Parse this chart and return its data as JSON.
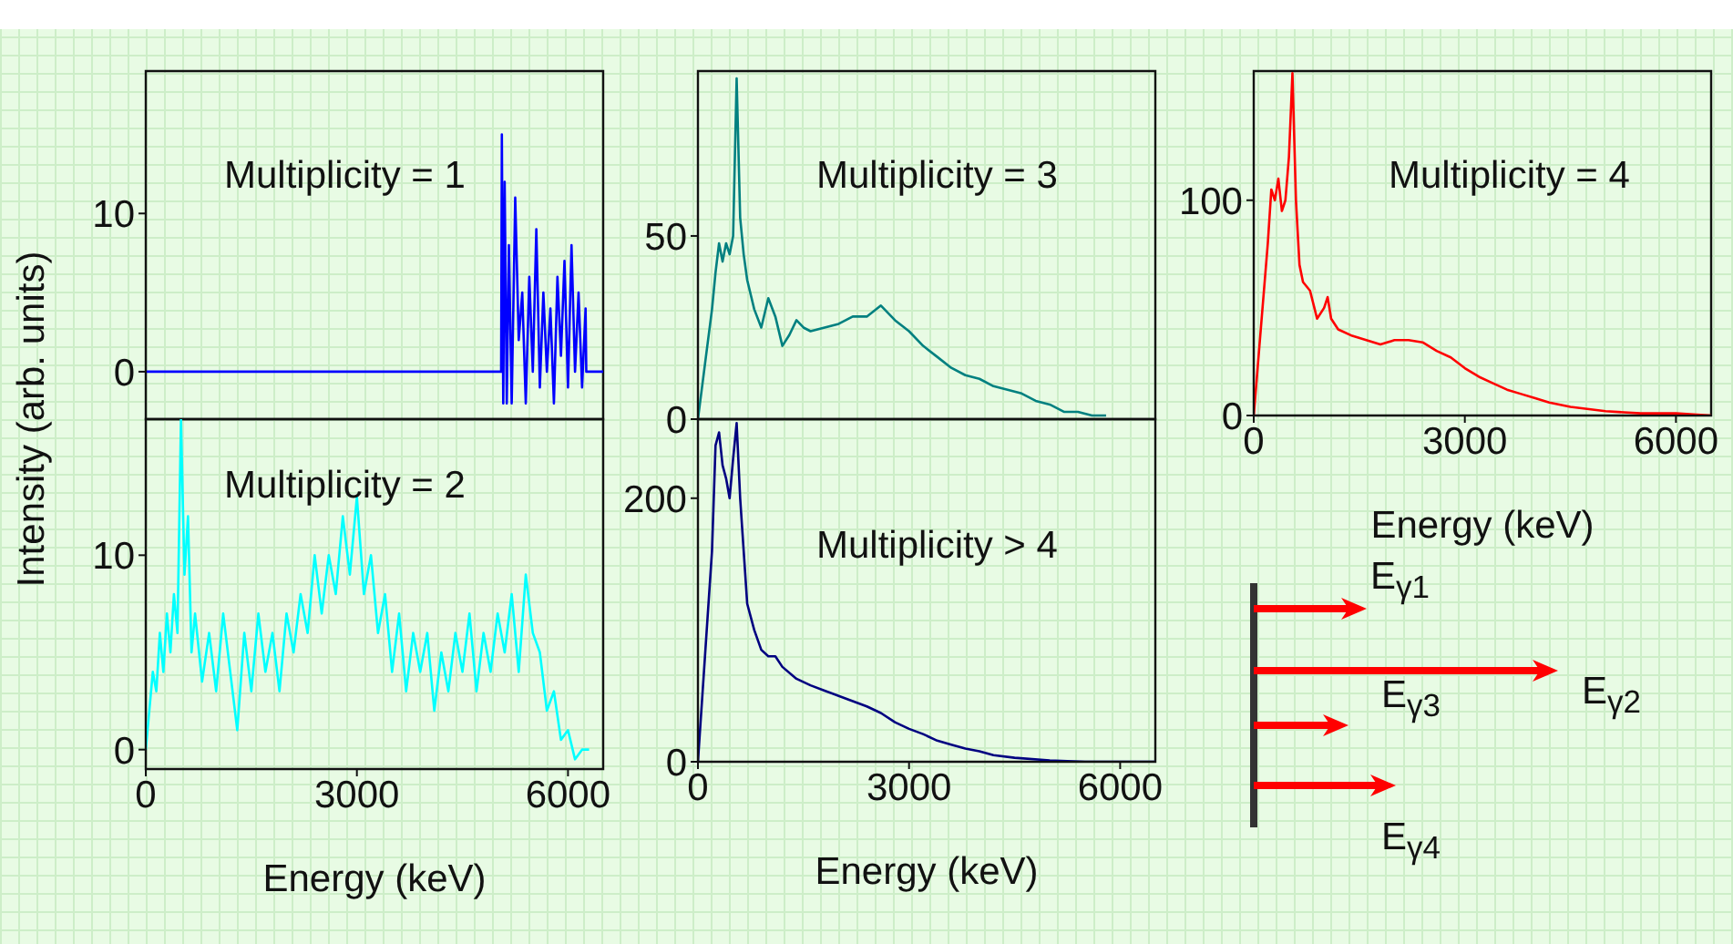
{
  "chart_data": [
    {
      "type": "line",
      "ylabel": "Intensity (arb. units)",
      "annotations": [
        "Multiplicity = 1"
      ],
      "xlim": [
        0,
        6500
      ],
      "xticks": [
        0,
        3000,
        6000
      ],
      "ylim": [
        -3,
        19
      ],
      "yticks": [
        0,
        10
      ],
      "tick_labels": "y",
      "marker": "none",
      "series": [
        {
          "color": "#0000ff",
          "x": [
            0,
            5050,
            5060,
            5080,
            5100,
            5130,
            5160,
            5200,
            5250,
            5300,
            5350,
            5400,
            5450,
            5500,
            5550,
            5600,
            5650,
            5700,
            5750,
            5800,
            5850,
            5900,
            5950,
            6000,
            6050,
            6100,
            6150,
            6200,
            6250,
            6260,
            6500
          ],
          "values": [
            0,
            0,
            15,
            -2,
            12,
            -2,
            8,
            -2,
            11,
            2,
            5,
            -2,
            6,
            0,
            9,
            -1,
            5,
            0,
            4,
            -2,
            6,
            1,
            7,
            -1,
            8,
            0,
            5,
            -1,
            4,
            0,
            0
          ]
        }
      ]
    },
    {
      "type": "line",
      "xlabel": "Energy (keV)",
      "annotations": [
        "Multiplicity = 2"
      ],
      "xlim": [
        0,
        6500
      ],
      "xticks": [
        0,
        3000,
        6000
      ],
      "ylim": [
        -1,
        17
      ],
      "yticks": [
        0,
        10
      ],
      "marker": "none",
      "series": [
        {
          "color": "#00ffff",
          "x": [
            0,
            50,
            100,
            150,
            200,
            250,
            300,
            350,
            400,
            450,
            500,
            550,
            600,
            650,
            700,
            800,
            900,
            1000,
            1100,
            1200,
            1300,
            1400,
            1500,
            1600,
            1700,
            1800,
            1900,
            2000,
            2100,
            2200,
            2300,
            2400,
            2500,
            2600,
            2700,
            2800,
            2900,
            3000,
            3100,
            3200,
            3300,
            3400,
            3500,
            3600,
            3700,
            3800,
            3900,
            4000,
            4100,
            4200,
            4300,
            4400,
            4500,
            4600,
            4700,
            4800,
            4900,
            5000,
            5100,
            5200,
            5300,
            5400,
            5500,
            5600,
            5700,
            5800,
            5900,
            6000,
            6100,
            6200,
            6300
          ],
          "values": [
            0,
            2,
            4,
            3,
            6,
            4,
            7,
            5,
            8,
            6,
            17,
            9,
            12,
            5,
            7,
            3.5,
            6,
            3,
            7,
            4,
            1,
            6,
            3,
            7,
            4,
            6,
            3,
            7,
            5,
            8,
            6,
            10,
            7,
            10,
            8,
            12,
            9,
            13,
            8,
            10,
            6,
            8,
            4,
            7,
            3,
            6,
            4,
            6,
            2,
            5,
            3,
            6,
            4,
            7,
            3,
            6,
            4,
            7,
            5,
            8,
            4,
            9,
            6,
            5,
            2,
            3,
            0.5,
            1,
            -0.5,
            0,
            0
          ]
        }
      ]
    },
    {
      "type": "line",
      "annotations": [
        "Multiplicity = 3"
      ],
      "xlim": [
        0,
        6500
      ],
      "xticks": [
        0,
        3000,
        6000
      ],
      "ylim": [
        0,
        95
      ],
      "yticks": [
        0,
        50
      ],
      "tick_labels": "y",
      "marker": "none",
      "series": [
        {
          "color": "#008080",
          "x": [
            0,
            100,
            200,
            250,
            300,
            350,
            400,
            450,
            500,
            550,
            600,
            650,
            700,
            800,
            900,
            1000,
            1100,
            1200,
            1300,
            1400,
            1500,
            1600,
            1800,
            2000,
            2200,
            2400,
            2600,
            2800,
            3000,
            3200,
            3400,
            3600,
            3800,
            4000,
            4200,
            4400,
            4600,
            4800,
            5000,
            5200,
            5400,
            5600,
            5800
          ],
          "values": [
            0,
            15,
            30,
            40,
            48,
            43,
            48,
            45,
            50,
            93,
            55,
            45,
            38,
            30,
            25,
            33,
            28,
            20,
            23,
            27,
            25,
            24,
            25,
            26,
            28,
            28,
            31,
            27,
            24,
            20,
            17,
            14,
            12,
            11,
            9,
            8,
            7,
            5,
            4,
            2,
            2,
            1,
            1
          ]
        }
      ]
    },
    {
      "type": "line",
      "xlabel": "Energy (keV)",
      "annotations": [
        "Multiplicity > 4"
      ],
      "xlim": [
        0,
        6500
      ],
      "xticks": [
        0,
        3000,
        6000
      ],
      "ylim": [
        0,
        260
      ],
      "yticks": [
        0,
        200
      ],
      "marker": "none",
      "series": [
        {
          "color": "#000080",
          "x": [
            0,
            100,
            200,
            250,
            300,
            350,
            400,
            450,
            500,
            550,
            600,
            650,
            700,
            800,
            900,
            1000,
            1100,
            1200,
            1400,
            1600,
            1800,
            2000,
            2200,
            2400,
            2600,
            2800,
            3000,
            3200,
            3400,
            3600,
            3800,
            4000,
            4200,
            4500,
            5000,
            5500,
            6000,
            6500
          ],
          "values": [
            0,
            80,
            160,
            240,
            250,
            225,
            215,
            200,
            230,
            257,
            200,
            160,
            120,
            100,
            85,
            80,
            80,
            72,
            63,
            58,
            54,
            50,
            46,
            42,
            37,
            30,
            25,
            21,
            16,
            13,
            10,
            8,
            5,
            3,
            1,
            0,
            0,
            0
          ]
        }
      ]
    },
    {
      "type": "line",
      "xlabel": "Energy (keV)",
      "annotations": [
        "Multiplicity = 4"
      ],
      "xlim": [
        0,
        6500
      ],
      "xticks": [
        0,
        3000,
        6000
      ],
      "ylim": [
        0,
        160
      ],
      "yticks": [
        0,
        100
      ],
      "marker": "none",
      "series": [
        {
          "color": "#ff0000",
          "x": [
            0,
            100,
            200,
            250,
            300,
            350,
            400,
            450,
            500,
            550,
            600,
            650,
            700,
            800,
            900,
            1000,
            1050,
            1100,
            1200,
            1400,
            1600,
            1800,
            2000,
            2200,
            2400,
            2600,
            2800,
            3000,
            3200,
            3400,
            3600,
            3800,
            4000,
            4200,
            4500,
            5000,
            5500,
            6000,
            6500
          ],
          "values": [
            0,
            40,
            80,
            105,
            100,
            110,
            95,
            100,
            120,
            159,
            100,
            70,
            62,
            58,
            45,
            50,
            55,
            45,
            40,
            37,
            35,
            33,
            35,
            35,
            34,
            30,
            27,
            22,
            18,
            15,
            12,
            10,
            8,
            6,
            4,
            2,
            1,
            1,
            0
          ]
        }
      ]
    },
    {
      "type": "other",
      "annotations": [
        "E$_{γ1}$",
        "E$_{γ2}$",
        "E$_{γ3}$",
        "E$_{γ4}$"
      ]
    }
  ]
}
